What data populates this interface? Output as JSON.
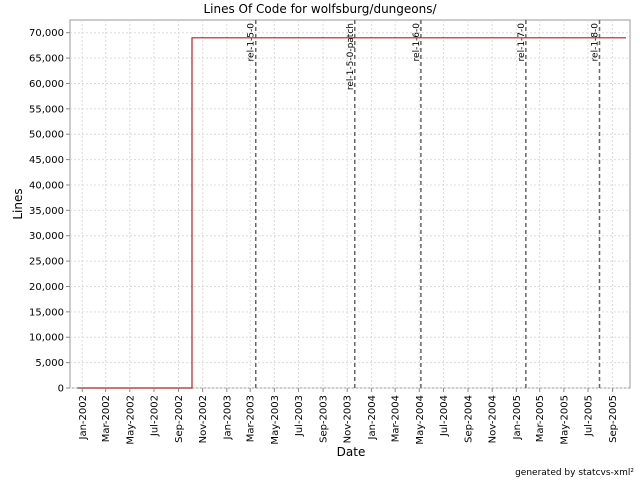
{
  "chart_data": {
    "type": "line",
    "title": "Lines Of Code for wolfsburg/dungeons/",
    "xlabel": "Date",
    "ylabel": "Lines",
    "footer": "generated by statcvs-xml²",
    "xlim": [
      "2001-12-01",
      "2005-10-15"
    ],
    "ylim": [
      0,
      72500
    ],
    "grid": true,
    "x_ticks": [
      "Jan-2002",
      "Mar-2002",
      "May-2002",
      "Jul-2002",
      "Sep-2002",
      "Nov-2002",
      "Jan-2003",
      "Mar-2003",
      "May-2003",
      "Jul-2003",
      "Sep-2003",
      "Nov-2003",
      "Jan-2004",
      "Mar-2004",
      "May-2004",
      "Jul-2004",
      "Sep-2004",
      "Nov-2004",
      "Jan-2005",
      "Mar-2005",
      "May-2005",
      "Jul-2005",
      "Sep-2005"
    ],
    "x_tick_dates": [
      "2002-01-01",
      "2002-03-01",
      "2002-05-01",
      "2002-07-01",
      "2002-09-01",
      "2002-11-01",
      "2003-01-01",
      "2003-03-01",
      "2003-05-01",
      "2003-07-01",
      "2003-09-01",
      "2003-11-01",
      "2004-01-01",
      "2004-03-01",
      "2004-05-01",
      "2004-07-01",
      "2004-09-01",
      "2004-11-01",
      "2005-01-01",
      "2005-03-01",
      "2005-05-01",
      "2005-07-01",
      "2005-09-01"
    ],
    "y_ticks": [
      "0",
      "5,000",
      "10,000",
      "15,000",
      "20,000",
      "25,000",
      "30,000",
      "35,000",
      "40,000",
      "45,000",
      "50,000",
      "55,000",
      "60,000",
      "65,000",
      "70,000"
    ],
    "y_tick_values": [
      0,
      5000,
      10000,
      15000,
      20000,
      25000,
      30000,
      35000,
      40000,
      45000,
      50000,
      55000,
      60000,
      65000,
      70000
    ],
    "series": [
      {
        "color": "#b22222",
        "points": [
          {
            "x": "2001-12-20",
            "y": 0
          },
          {
            "x": "2002-10-05",
            "y": 0
          },
          {
            "x": "2002-10-05",
            "y": 69000
          },
          {
            "x": "2005-10-05",
            "y": 69000
          }
        ]
      }
    ],
    "tags": [
      {
        "label": "rel-1-5-0",
        "x": "2003-03-15"
      },
      {
        "label": "rel-1-5-0-patch",
        "x": "2003-11-20"
      },
      {
        "label": "rel-1-6-0",
        "x": "2004-05-05"
      },
      {
        "label": "rel-1-7-0",
        "x": "2005-01-25"
      },
      {
        "label": "rel-1-8-0",
        "x": "2005-07-30"
      }
    ]
  }
}
